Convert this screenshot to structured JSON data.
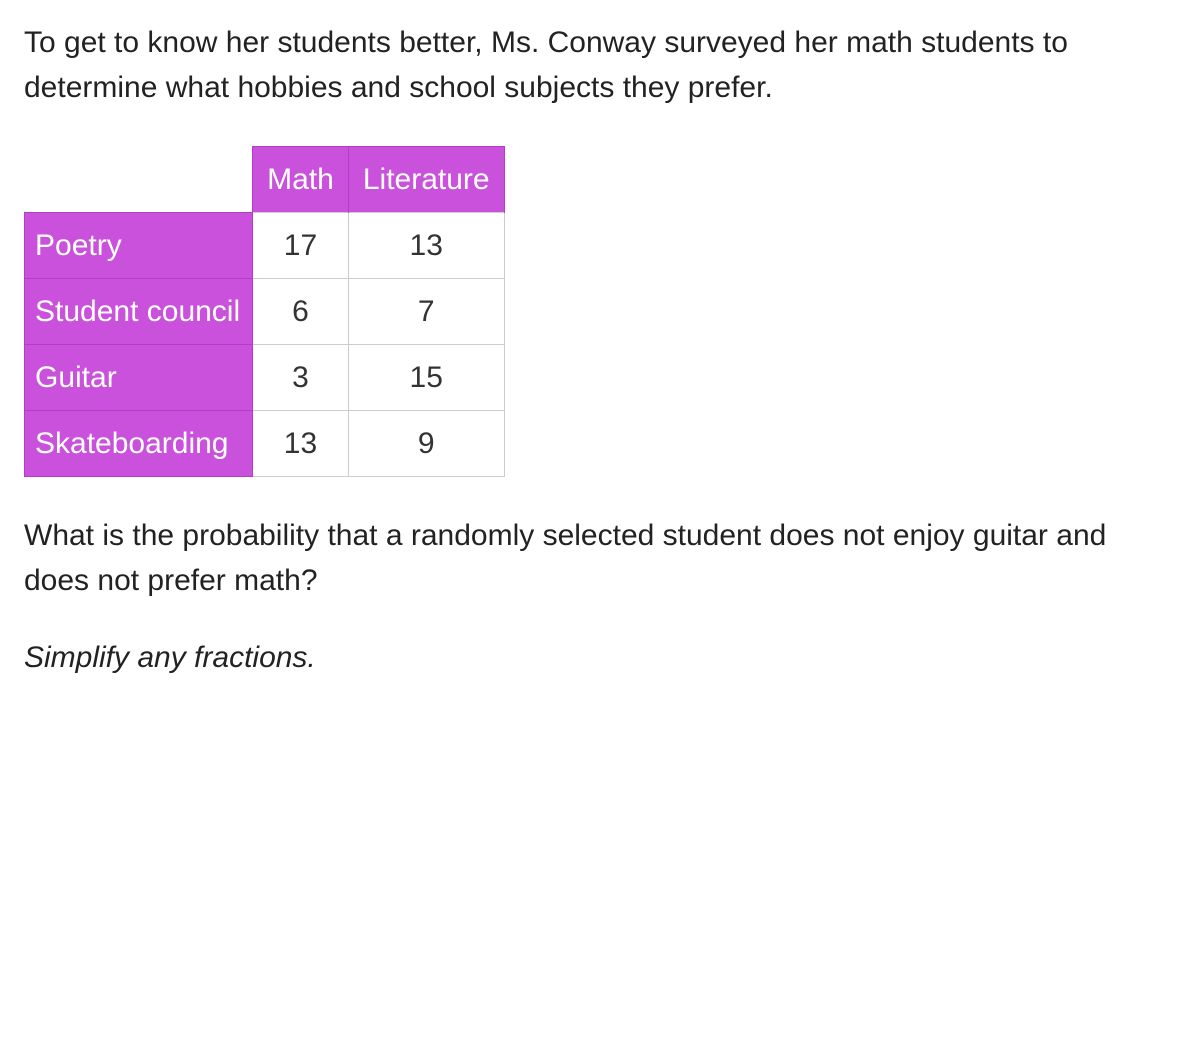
{
  "intro": "To get to know her students better, Ms. Conway surveyed her math students to determine what hobbies and school subjects they prefer.",
  "table": {
    "col_headers": [
      "Math",
      "Literature"
    ],
    "row_headers": [
      "Poetry",
      "Student council",
      "Guitar",
      "Skateboarding"
    ],
    "rows": [
      [
        "17",
        "13"
      ],
      [
        "6",
        "7"
      ],
      [
        "3",
        "15"
      ],
      [
        "13",
        "9"
      ]
    ],
    "header_bg": "#c951db",
    "header_fg": "#ffffff",
    "cell_border": "#cccccc",
    "header_border": "#b73bc9"
  },
  "question": "What is the probability that a randomly selected student does not enjoy guitar and does not prefer math?",
  "instruction": "Simplify any fractions."
}
